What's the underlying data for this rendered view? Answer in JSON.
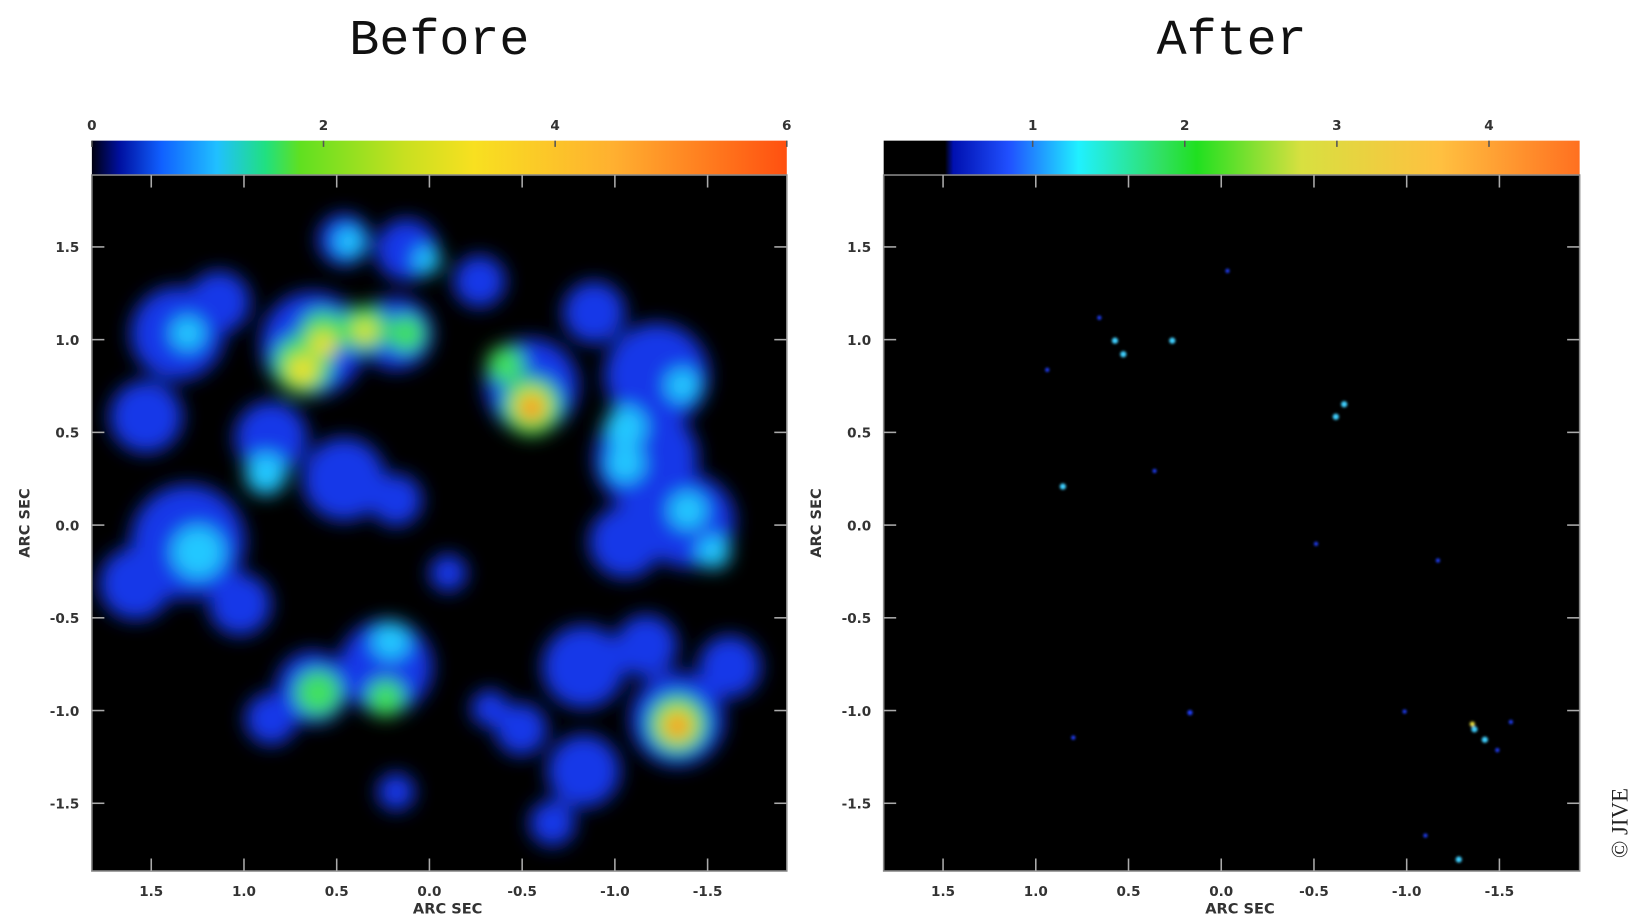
{
  "panels": [
    {
      "title": "Before",
      "colorbar": {
        "ticks": [
          "0",
          "2",
          "4",
          "6"
        ]
      },
      "x_axis": {
        "label": "ARC SEC",
        "ticks": [
          "1.5",
          "1.0",
          "0.5",
          "0.0",
          "-0.5",
          "-1.0",
          "-1.5"
        ]
      },
      "y_axis": {
        "label": "ARC SEC",
        "ticks": [
          "1.5",
          "1.0",
          "0.5",
          "0.0",
          "-0.5",
          "-1.0",
          "-1.5"
        ]
      }
    },
    {
      "title": "After",
      "colorbar": {
        "ticks": [
          "1",
          "2",
          "3",
          "4"
        ]
      },
      "x_axis": {
        "label": "ARC SEC",
        "ticks": [
          "1.5",
          "1.0",
          "0.5",
          "0.0",
          "-0.5",
          "-1.0",
          "-1.5"
        ]
      },
      "y_axis": {
        "label": "ARC SEC",
        "ticks": [
          "1.5",
          "1.0",
          "0.5",
          "0.0",
          "-0.5",
          "-1.0",
          "-1.5"
        ]
      }
    }
  ],
  "credit": "© JIVE"
}
